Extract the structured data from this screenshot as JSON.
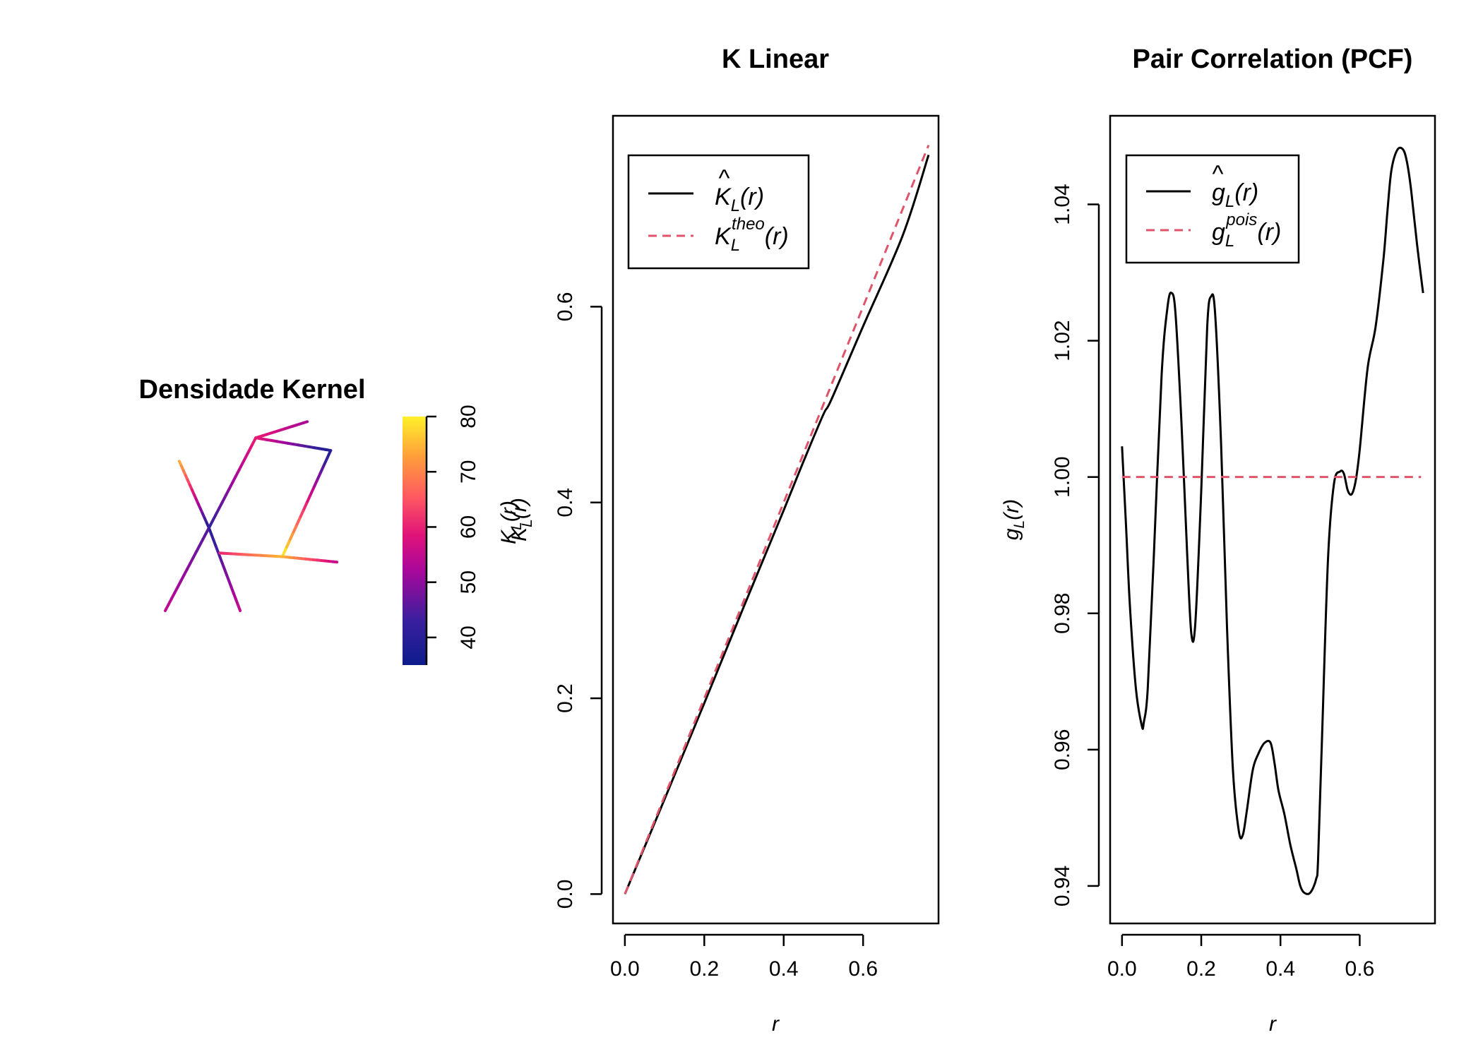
{
  "colors": {
    "series_est": "#000000",
    "series_theo": "#DF536B"
  },
  "chart_data": [
    {
      "type": "heatmap",
      "title": "Densidade Kernel",
      "colorbar": {
        "label": "K_L(r)",
        "ticks": [
          40,
          50,
          60,
          70,
          80
        ],
        "range": [
          35,
          80
        ]
      },
      "segments": [
        {
          "from": [
            0.09,
            0.83
          ],
          "to": [
            0.28,
            0.46
          ],
          "values": [
            75,
            40
          ]
        },
        {
          "from": [
            0.28,
            0.46
          ],
          "to": [
            0.48,
            0.0
          ],
          "values": [
            40,
            55
          ]
        },
        {
          "from": [
            0.0,
            0.0
          ],
          "to": [
            0.28,
            0.46
          ],
          "values": [
            55,
            45
          ]
        },
        {
          "from": [
            0.28,
            0.46
          ],
          "to": [
            0.58,
            0.96
          ],
          "values": [
            42,
            60
          ]
        },
        {
          "from": [
            0.58,
            0.96
          ],
          "to": [
            0.91,
            1.05
          ],
          "values": [
            60,
            52
          ]
        },
        {
          "from": [
            0.58,
            0.96
          ],
          "to": [
            1.06,
            0.89
          ],
          "values": [
            60,
            38
          ]
        },
        {
          "from": [
            1.06,
            0.89
          ],
          "to": [
            0.75,
            0.3
          ],
          "values": [
            38,
            80
          ]
        },
        {
          "from": [
            0.35,
            0.32
          ],
          "to": [
            0.75,
            0.3
          ],
          "values": [
            60,
            75
          ]
        },
        {
          "from": [
            0.75,
            0.3
          ],
          "to": [
            1.1,
            0.27
          ],
          "values": [
            75,
            55
          ]
        }
      ]
    },
    {
      "type": "line",
      "title": "K Linear",
      "xlabel": "r",
      "ylabel": "K_L(r)",
      "xlim": [
        -0.03,
        0.79
      ],
      "ylim": [
        -0.03,
        0.795
      ],
      "xticks": [
        "0.0",
        "0.2",
        "0.4",
        "0.6"
      ],
      "yticks": [
        "0.0",
        "0.2",
        "0.4",
        "0.6"
      ],
      "legend": {
        "position": "top-left",
        "entries": [
          "K̂_L(r)",
          "K_L^theo(r)"
        ]
      },
      "series": [
        {
          "name": "K̂_L(r)",
          "style": "solid",
          "x": [
            0,
            0.1,
            0.2,
            0.3,
            0.4,
            0.45,
            0.5,
            0.52,
            0.6,
            0.7,
            0.765
          ],
          "y": [
            0,
            0.097,
            0.195,
            0.294,
            0.392,
            0.442,
            0.49,
            0.505,
            0.58,
            0.673,
            0.755
          ]
        },
        {
          "name": "K_L^theo(r)",
          "style": "dashed",
          "x": [
            0,
            0.765
          ],
          "y": [
            0,
            0.765
          ]
        }
      ]
    },
    {
      "type": "line",
      "title": "Pair Correlation (PCF)",
      "xlabel": "r",
      "ylabel": "g_L(r)",
      "xlim": [
        -0.03,
        0.79
      ],
      "ylim": [
        0.9345,
        1.053
      ],
      "xticks": [
        "0.0",
        "0.2",
        "0.4",
        "0.6"
      ],
      "yticks": [
        "0.94",
        "0.96",
        "0.98",
        "1.00",
        "1.02",
        "1.04"
      ],
      "legend": {
        "position": "top-left",
        "entries": [
          "ĝ_L(r)",
          "g_L^pois(r)"
        ]
      },
      "series": [
        {
          "name": "ĝ_L(r)",
          "style": "solid",
          "x": [
            0,
            0.01,
            0.02,
            0.035,
            0.05,
            0.055,
            0.065,
            0.08,
            0.1,
            0.115,
            0.125,
            0.135,
            0.15,
            0.165,
            0.175,
            0.185,
            0.2,
            0.215,
            0.225,
            0.235,
            0.25,
            0.265,
            0.28,
            0.295,
            0.305,
            0.315,
            0.33,
            0.345,
            0.36,
            0.375,
            0.385,
            0.395,
            0.41,
            0.425,
            0.44,
            0.45,
            0.46,
            0.475,
            0.49,
            0.495,
            0.505,
            0.52,
            0.535,
            0.55,
            0.56,
            0.57,
            0.58,
            0.59,
            0.6,
            0.62,
            0.64,
            0.66,
            0.67,
            0.68,
            0.695,
            0.71,
            0.72,
            0.73,
            0.745,
            0.76
          ],
          "y": [
            1.0045,
            0.993,
            0.981,
            0.969,
            0.9635,
            0.964,
            0.969,
            0.988,
            1.015,
            1.025,
            1.027,
            1.024,
            1.008,
            0.988,
            0.977,
            0.9785,
            0.998,
            1.022,
            1.0265,
            1.024,
            1.005,
            0.978,
            0.957,
            0.948,
            0.9475,
            0.951,
            0.957,
            0.9595,
            0.961,
            0.961,
            0.958,
            0.954,
            0.9505,
            0.946,
            0.9425,
            0.94,
            0.939,
            0.939,
            0.941,
            0.944,
            0.962,
            0.988,
            0.999,
            1.0008,
            1.0005,
            0.998,
            0.9975,
            0.9995,
            1.004,
            1.016,
            1.022,
            1.032,
            1.039,
            1.045,
            1.048,
            1.048,
            1.046,
            1.042,
            1.034,
            1.027
          ]
        },
        {
          "name": "g_L^pois(r)",
          "style": "dashed",
          "x": [
            0,
            0.755
          ],
          "y": [
            1.0,
            1.0
          ]
        }
      ]
    }
  ]
}
